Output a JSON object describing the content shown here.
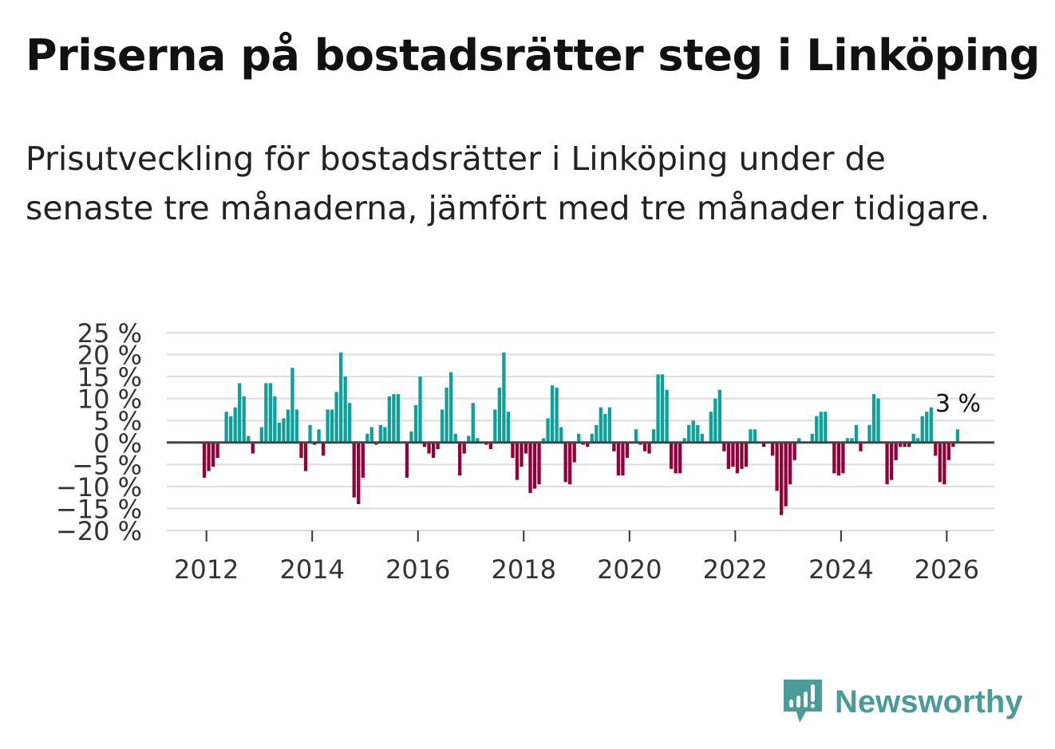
{
  "title": "Priserna på bostadsrätter steg i Linköping",
  "subtitle": "Prisutveckling för bostadsrätter i Linköping under de senaste tre månaderna, jämfört med tre månader tidigare.",
  "brand": {
    "name": "Newsworthy",
    "color": "#4b9b99"
  },
  "colors": {
    "positive": "#0ea19a",
    "negative": "#93003a",
    "grid": "#dddddd",
    "zero_line": "#444444"
  },
  "chart_data": {
    "type": "bar",
    "title": "Prisutveckling för bostadsrätter i Linköping",
    "ylabel": "",
    "xlabel": "",
    "ylim": [
      -20,
      25
    ],
    "y_ticks": [
      25,
      20,
      15,
      10,
      5,
      0,
      -5,
      -10,
      -15,
      -20
    ],
    "y_tick_labels": [
      "25 %",
      "20 %",
      "15 %",
      "10 %",
      "5 %",
      "0 %",
      "−5 %",
      "−10 %",
      "−15 %",
      "−20 %"
    ],
    "x_ticks": [
      2012,
      2014,
      2016,
      2018,
      2020,
      2022,
      2024,
      2026
    ],
    "x_range": [
      2011.25,
      2026.9
    ],
    "start": 2011.96,
    "step_years": 0.0833,
    "values": [
      -8,
      -6.5,
      -5.5,
      -3.5,
      0,
      7,
      6,
      8,
      13.5,
      10.5,
      1.5,
      -2.5,
      0,
      3.5,
      13.5,
      13.5,
      10.5,
      4.5,
      5.5,
      7.5,
      17,
      7.5,
      -3.5,
      -6.5,
      4,
      -0.5,
      3,
      -3,
      7.5,
      7.5,
      11.5,
      20.5,
      15,
      9,
      -12.5,
      -14,
      -8,
      2,
      3.5,
      -0.5,
      4,
      3.5,
      10.5,
      11,
      11,
      0,
      -8,
      2.5,
      8.5,
      15,
      -1,
      -2.5,
      -3.5,
      -1.5,
      7.5,
      12.5,
      16,
      2,
      -7.5,
      -2.5,
      1.5,
      9,
      1,
      0,
      -0.5,
      -1.5,
      7.5,
      12.5,
      20.5,
      7,
      -3.5,
      -8.5,
      -5.5,
      -2.5,
      -11.5,
      -10.5,
      -9.5,
      1,
      5.5,
      13,
      12.5,
      3.5,
      -9,
      -9.5,
      -4.5,
      2,
      -0.5,
      -1,
      2,
      4,
      8,
      6.5,
      8,
      -2,
      -7.5,
      -7.5,
      -3.5,
      0,
      3,
      -0.5,
      -2,
      -2.5,
      3,
      15.5,
      15.5,
      12,
      -6,
      -7,
      -7,
      1,
      4,
      5,
      4,
      2,
      0,
      7,
      10,
      12,
      -2,
      -6,
      -5.5,
      -7,
      -6,
      -5.5,
      3,
      3,
      0,
      -1,
      0,
      -3,
      -11,
      -16.5,
      -14.5,
      -9.5,
      -4,
      1,
      0,
      0,
      2,
      6,
      7,
      7,
      0,
      -7,
      -7.5,
      -7,
      1,
      1,
      4,
      -2,
      0,
      4,
      11,
      10,
      0,
      -9.5,
      -8.5,
      -4,
      -1,
      -1,
      -1,
      2,
      1,
      6,
      7,
      8,
      -3,
      -9,
      -9.5,
      -4,
      -1,
      3
    ],
    "annotation": {
      "text": "3 %",
      "target": "last"
    }
  }
}
